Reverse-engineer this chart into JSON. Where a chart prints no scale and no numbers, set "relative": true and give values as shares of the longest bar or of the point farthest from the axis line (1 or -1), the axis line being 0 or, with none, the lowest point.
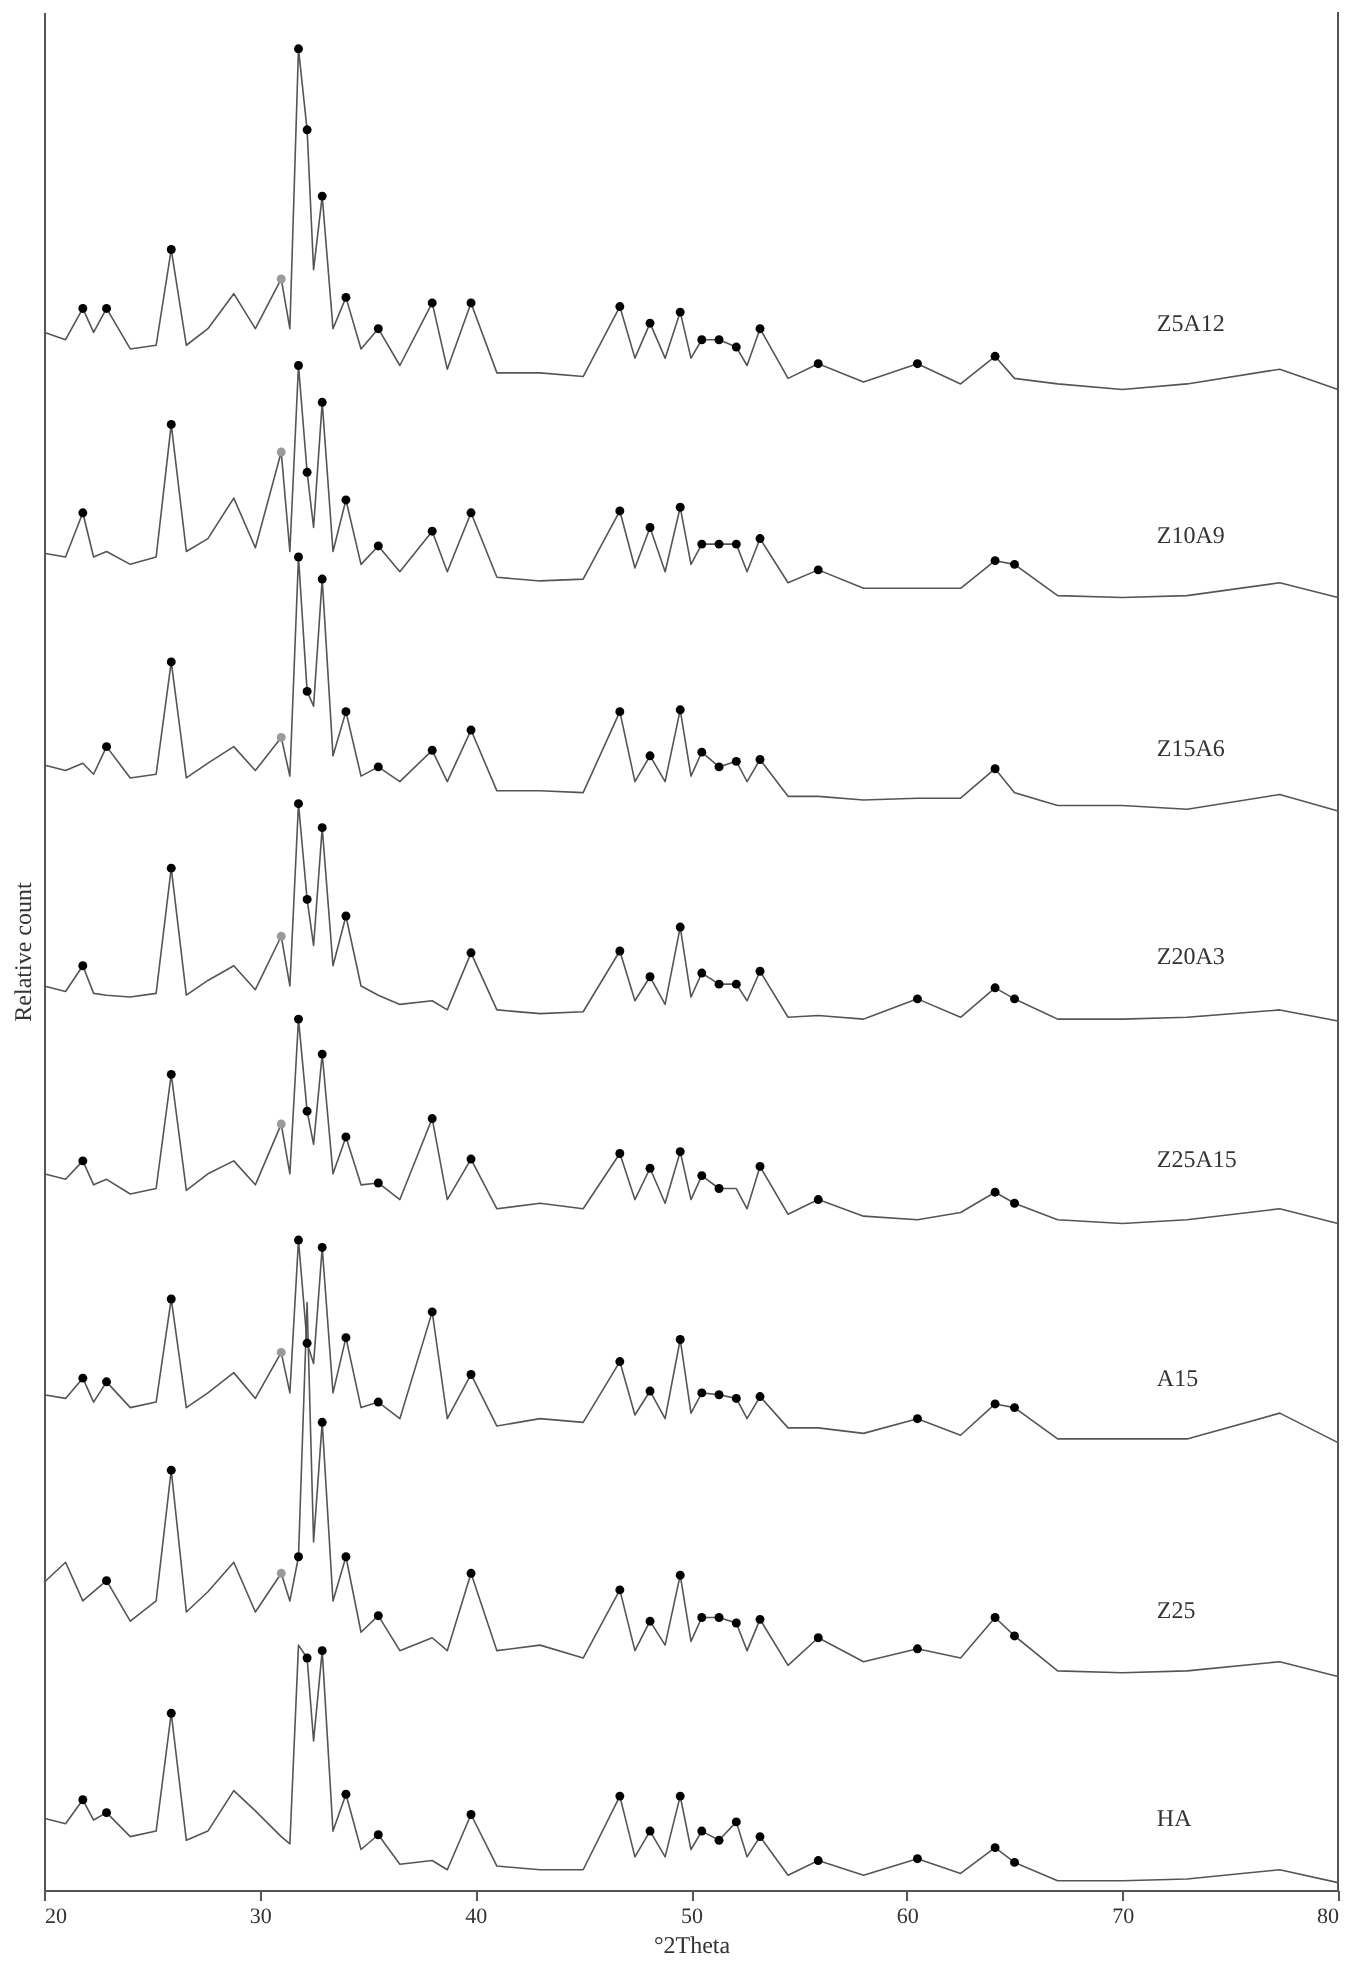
{
  "chart_data": {
    "type": "line",
    "xlabel": "°2Theta",
    "ylabel": "Relative count",
    "relative": true,
    "xlim": [
      20,
      80
    ],
    "xticks": [
      20,
      30,
      40,
      50,
      60,
      70,
      80
    ],
    "x": [
      20.0,
      21.0,
      21.8,
      22.3,
      22.9,
      24.0,
      25.2,
      25.9,
      26.6,
      27.6,
      28.8,
      29.8,
      31.0,
      31.4,
      31.8,
      32.2,
      32.5,
      32.9,
      33.4,
      34.0,
      34.7,
      35.5,
      36.5,
      38.0,
      38.7,
      39.8,
      41.0,
      43.0,
      45.0,
      46.7,
      47.4,
      48.1,
      48.8,
      49.5,
      50.0,
      50.5,
      51.3,
      52.1,
      52.6,
      53.2,
      54.5,
      55.9,
      58.0,
      60.5,
      62.5,
      64.1,
      65.0,
      67.0,
      70.0,
      73.0,
      77.3,
      80.0
    ],
    "series": [
      {
        "name": "Z5A12",
        "color": "#555555",
        "values": [
          0.846,
          0.842,
          0.859,
          0.846,
          0.859,
          0.837,
          0.839,
          0.891,
          0.839,
          0.848,
          0.867,
          0.848,
          0.875,
          0.848,
          1.0,
          0.956,
          0.88,
          0.92,
          0.848,
          0.865,
          0.837,
          0.848,
          0.828,
          0.862,
          0.826,
          0.862,
          0.824,
          0.824,
          0.822,
          0.86,
          0.832,
          0.851,
          0.832,
          0.857,
          0.832,
          0.842,
          0.842,
          0.838,
          0.828,
          0.848,
          0.821,
          0.829,
          0.819,
          0.829,
          0.818,
          0.833,
          0.821,
          0.818,
          0.815,
          0.818,
          0.826,
          0.815
        ]
      },
      {
        "name": "Z10A9",
        "color": "#555555",
        "values": [
          0.726,
          0.724,
          0.748,
          0.724,
          0.727,
          0.72,
          0.724,
          0.796,
          0.727,
          0.734,
          0.756,
          0.729,
          0.781,
          0.727,
          0.828,
          0.77,
          0.74,
          0.808,
          0.727,
          0.755,
          0.72,
          0.73,
          0.716,
          0.738,
          0.716,
          0.748,
          0.713,
          0.711,
          0.712,
          0.749,
          0.718,
          0.74,
          0.716,
          0.751,
          0.72,
          0.731,
          0.731,
          0.731,
          0.716,
          0.734,
          0.71,
          0.717,
          0.707,
          0.707,
          0.707,
          0.722,
          0.72,
          0.703,
          0.702,
          0.703,
          0.71,
          0.702
        ]
      },
      {
        "name": "Z15A6",
        "color": "#555555",
        "values": [
          0.611,
          0.608,
          0.612,
          0.606,
          0.621,
          0.604,
          0.606,
          0.667,
          0.604,
          0.612,
          0.621,
          0.608,
          0.626,
          0.605,
          0.724,
          0.651,
          0.643,
          0.712,
          0.616,
          0.64,
          0.605,
          0.61,
          0.602,
          0.619,
          0.602,
          0.63,
          0.597,
          0.597,
          0.596,
          0.64,
          0.602,
          0.616,
          0.602,
          0.641,
          0.605,
          0.618,
          0.61,
          0.613,
          0.602,
          0.614,
          0.594,
          0.594,
          0.592,
          0.593,
          0.593,
          0.609,
          0.596,
          0.589,
          0.589,
          0.587,
          0.595,
          0.586
        ]
      },
      {
        "name": "Z20A3",
        "color": "#555555",
        "values": [
          0.491,
          0.488,
          0.502,
          0.487,
          0.486,
          0.485,
          0.487,
          0.555,
          0.486,
          0.494,
          0.502,
          0.489,
          0.518,
          0.491,
          0.59,
          0.538,
          0.513,
          0.577,
          0.502,
          0.529,
          0.491,
          0.486,
          0.481,
          0.483,
          0.478,
          0.509,
          0.478,
          0.476,
          0.477,
          0.51,
          0.483,
          0.496,
          0.481,
          0.523,
          0.485,
          0.498,
          0.492,
          0.492,
          0.483,
          0.499,
          0.474,
          0.475,
          0.473,
          0.484,
          0.474,
          0.49,
          0.484,
          0.473,
          0.473,
          0.474,
          0.478,
          0.472
        ]
      },
      {
        "name": "Z25A15",
        "color": "#555555",
        "values": [
          0.389,
          0.386,
          0.396,
          0.383,
          0.386,
          0.378,
          0.381,
          0.443,
          0.38,
          0.389,
          0.396,
          0.383,
          0.416,
          0.389,
          0.473,
          0.423,
          0.405,
          0.454,
          0.389,
          0.409,
          0.383,
          0.384,
          0.375,
          0.419,
          0.375,
          0.397,
          0.37,
          0.373,
          0.37,
          0.4,
          0.375,
          0.392,
          0.373,
          0.401,
          0.375,
          0.388,
          0.381,
          0.381,
          0.37,
          0.393,
          0.367,
          0.375,
          0.366,
          0.364,
          0.368,
          0.379,
          0.373,
          0.364,
          0.362,
          0.364,
          0.37,
          0.362
        ]
      },
      {
        "name": "A15",
        "color": "#555555",
        "values": [
          0.269,
          0.267,
          0.278,
          0.265,
          0.276,
          0.262,
          0.265,
          0.321,
          0.262,
          0.27,
          0.281,
          0.267,
          0.292,
          0.27,
          0.353,
          0.297,
          0.286,
          0.349,
          0.27,
          0.3,
          0.262,
          0.265,
          0.256,
          0.314,
          0.256,
          0.28,
          0.252,
          0.256,
          0.254,
          0.287,
          0.258,
          0.271,
          0.256,
          0.299,
          0.259,
          0.27,
          0.269,
          0.267,
          0.256,
          0.268,
          0.251,
          0.251,
          0.248,
          0.256,
          0.247,
          0.264,
          0.262,
          0.245,
          0.245,
          0.245,
          0.259,
          0.243
        ]
      },
      {
        "name": "Z25",
        "color": "#555555",
        "values": [
          0.167,
          0.178,
          0.157,
          0.162,
          0.168,
          0.146,
          0.157,
          0.228,
          0.151,
          0.162,
          0.178,
          0.151,
          0.172,
          0.157,
          0.181,
          0.319,
          0.189,
          0.254,
          0.157,
          0.181,
          0.14,
          0.149,
          0.13,
          0.137,
          0.13,
          0.172,
          0.13,
          0.133,
          0.126,
          0.163,
          0.13,
          0.146,
          0.133,
          0.171,
          0.135,
          0.148,
          0.148,
          0.145,
          0.13,
          0.147,
          0.122,
          0.137,
          0.124,
          0.131,
          0.126,
          0.148,
          0.138,
          0.119,
          0.118,
          0.119,
          0.124,
          0.116
        ]
      },
      {
        "name": "HA",
        "color": "#555555",
        "values": [
          0.039,
          0.036,
          0.049,
          0.038,
          0.042,
          0.029,
          0.032,
          0.096,
          0.027,
          0.032,
          0.054,
          0.043,
          0.029,
          0.025,
          0.133,
          0.126,
          0.081,
          0.13,
          0.032,
          0.052,
          0.022,
          0.03,
          0.014,
          0.016,
          0.011,
          0.041,
          0.013,
          0.011,
          0.011,
          0.051,
          0.018,
          0.032,
          0.018,
          0.051,
          0.022,
          0.032,
          0.027,
          0.037,
          0.018,
          0.029,
          0.008,
          0.016,
          0.008,
          0.017,
          0.009,
          0.023,
          0.015,
          0.005,
          0.005,
          0.006,
          0.011,
          0.004
        ]
      },
      {
        "type": "scatter",
        "marker": "circle",
        "color": "#000000",
        "x": [
          21.8,
          22.9,
          25.9,
          31.8,
          32.2,
          32.9,
          34.0,
          35.5,
          38.0,
          39.8,
          46.7,
          48.1,
          49.5,
          50.5,
          51.3,
          52.1,
          53.2,
          55.9,
          60.5,
          64.1,
          21.8,
          25.9,
          31.8,
          32.2,
          32.9,
          34.0,
          35.5,
          38.0,
          39.8,
          46.7,
          48.1,
          49.5,
          50.5,
          51.3,
          52.1,
          53.2,
          55.9,
          64.1,
          65.0,
          22.9,
          25.9,
          31.8,
          32.2,
          32.9,
          34.0,
          35.5,
          38.0,
          39.8,
          46.7,
          48.1,
          49.5,
          50.5,
          51.3,
          52.1,
          53.2,
          64.1,
          21.8,
          25.9,
          31.8,
          32.2,
          32.9,
          34.0,
          39.8,
          46.7,
          48.1,
          49.5,
          50.5,
          51.3,
          52.1,
          53.2,
          60.5,
          64.1,
          65.0,
          21.8,
          25.9,
          31.8,
          32.2,
          32.9,
          34.0,
          35.5,
          38.0,
          39.8,
          46.7,
          48.1,
          49.5,
          50.5,
          51.3,
          53.2,
          55.9,
          64.1,
          65.0,
          21.8,
          22.9,
          25.9,
          31.8,
          32.2,
          32.9,
          34.0,
          35.5,
          38.0,
          39.8,
          46.7,
          48.1,
          49.5,
          50.5,
          51.3,
          52.1,
          53.2,
          60.5,
          64.1,
          65.0,
          22.9,
          25.9,
          31.8,
          32.9,
          34.0,
          35.5,
          39.8,
          46.7,
          48.1,
          49.5,
          50.5,
          51.3,
          52.1,
          53.2,
          55.9,
          60.5,
          64.1,
          65.0,
          21.8,
          22.9,
          25.9,
          32.2,
          32.9,
          34.0,
          35.5,
          39.8,
          46.7,
          48.1,
          49.5,
          50.5,
          51.3,
          52.1,
          53.2,
          55.9,
          60.5,
          64.1,
          65.0
        ],
        "values": [
          0.859,
          0.859,
          0.891,
          1.0,
          0.956,
          0.92,
          0.865,
          0.848,
          0.862,
          0.862,
          0.86,
          0.851,
          0.857,
          0.842,
          0.842,
          0.838,
          0.848,
          0.829,
          0.829,
          0.833,
          0.748,
          0.796,
          0.828,
          0.77,
          0.808,
          0.755,
          0.73,
          0.738,
          0.748,
          0.749,
          0.74,
          0.751,
          0.731,
          0.731,
          0.731,
          0.734,
          0.717,
          0.722,
          0.72,
          0.621,
          0.667,
          0.724,
          0.651,
          0.712,
          0.64,
          0.61,
          0.619,
          0.63,
          0.64,
          0.616,
          0.641,
          0.618,
          0.61,
          0.613,
          0.614,
          0.609,
          0.502,
          0.555,
          0.59,
          0.538,
          0.577,
          0.529,
          0.509,
          0.51,
          0.496,
          0.523,
          0.498,
          0.492,
          0.492,
          0.499,
          0.484,
          0.49,
          0.484,
          0.396,
          0.443,
          0.473,
          0.423,
          0.454,
          0.409,
          0.384,
          0.419,
          0.397,
          0.4,
          0.392,
          0.401,
          0.388,
          0.381,
          0.393,
          0.375,
          0.379,
          0.373,
          0.278,
          0.276,
          0.321,
          0.353,
          0.297,
          0.349,
          0.3,
          0.265,
          0.314,
          0.28,
          0.287,
          0.271,
          0.299,
          0.27,
          0.269,
          0.267,
          0.268,
          0.256,
          0.264,
          0.262,
          0.168,
          0.228,
          0.181,
          0.254,
          0.181,
          0.149,
          0.172,
          0.163,
          0.146,
          0.171,
          0.148,
          0.148,
          0.145,
          0.147,
          0.137,
          0.131,
          0.148,
          0.138,
          0.049,
          0.042,
          0.096,
          0.126,
          0.13,
          0.052,
          0.03,
          0.041,
          0.051,
          0.032,
          0.051,
          0.032,
          0.027,
          0.037,
          0.029,
          0.016,
          0.017,
          0.023,
          0.015
        ]
      },
      {
        "type": "scatter",
        "marker": "circle",
        "color": "#9a9a9a",
        "x": [
          31.0,
          31.0,
          31.0,
          31.0,
          31.0,
          31.0,
          31.0
        ],
        "values": [
          0.875,
          0.781,
          0.626,
          0.518,
          0.416,
          0.292,
          0.172
        ]
      }
    ]
  }
}
